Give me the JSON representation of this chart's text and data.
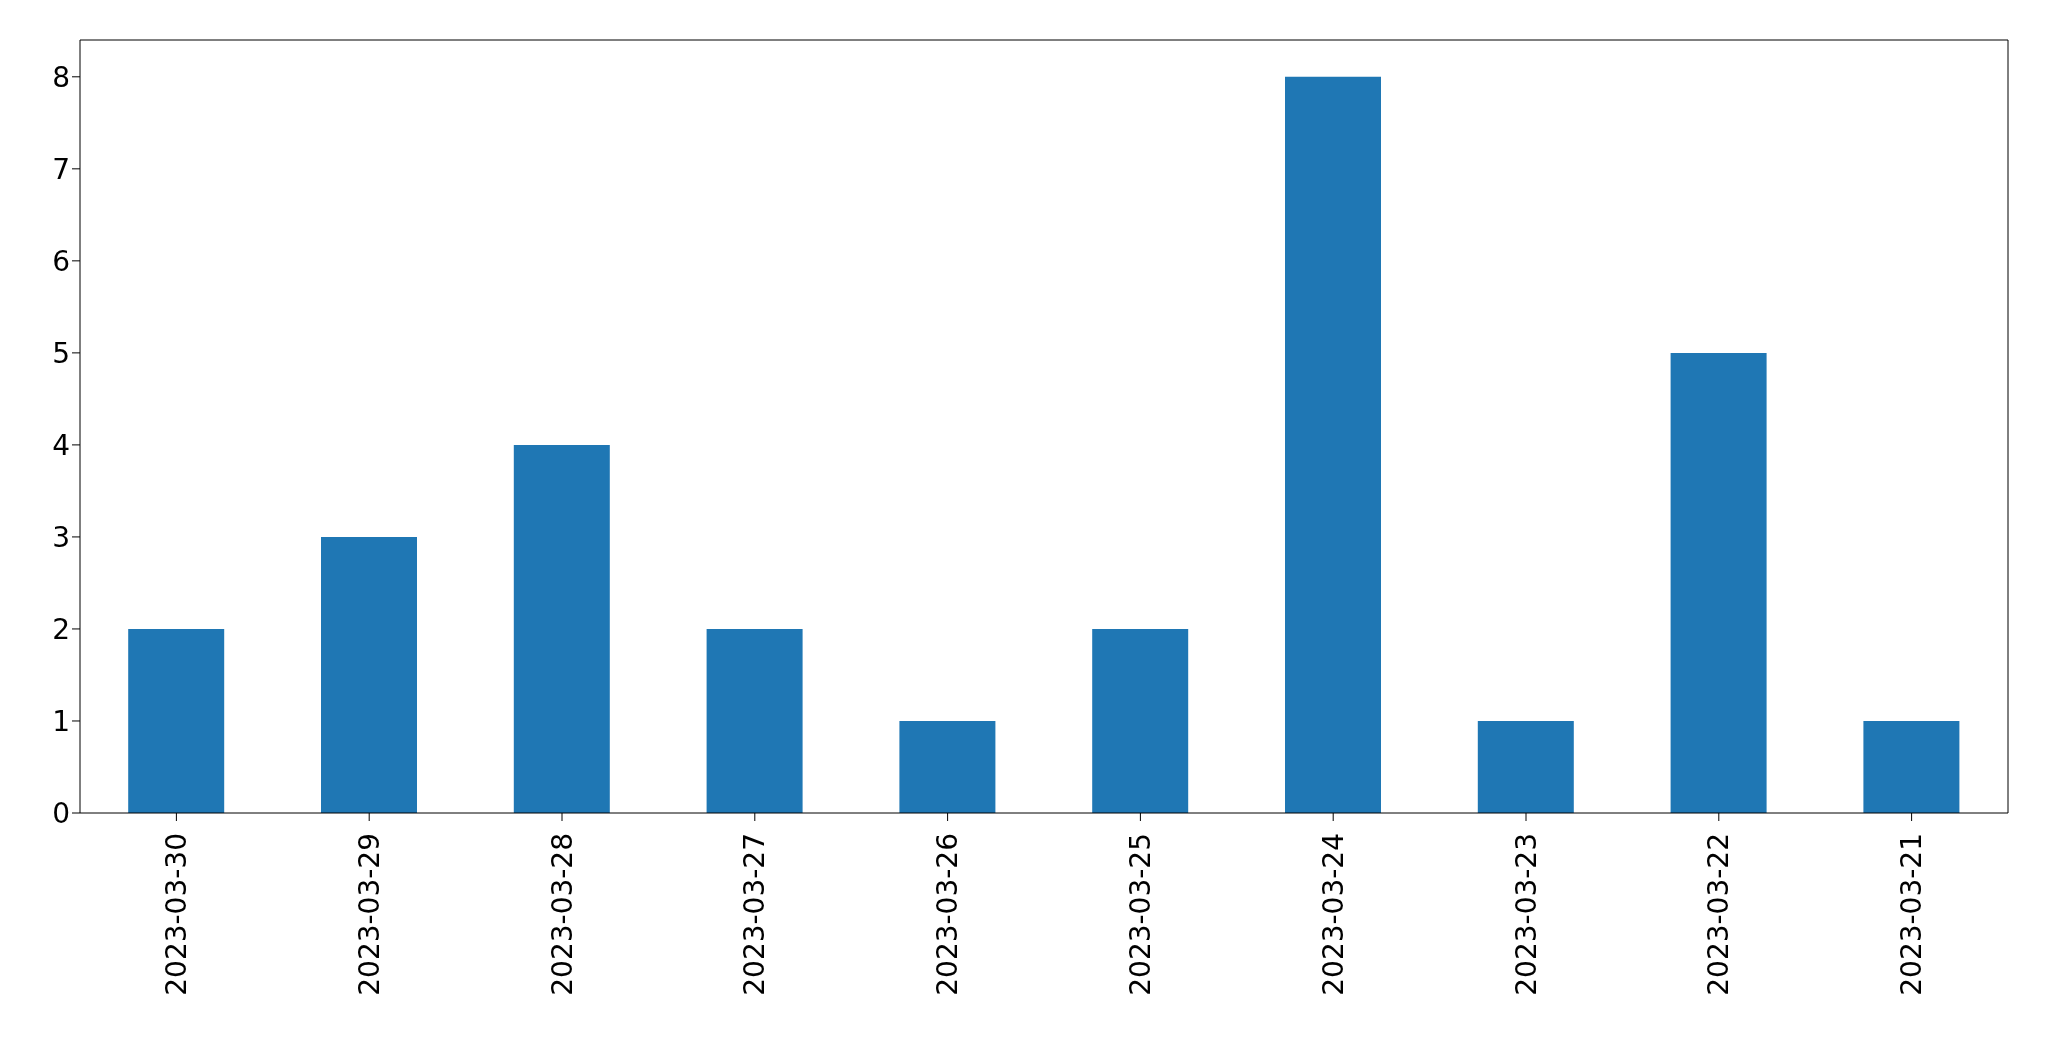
{
  "chart_data": {
    "type": "bar",
    "categories": [
      "2023-03-30",
      "2023-03-29",
      "2023-03-28",
      "2023-03-27",
      "2023-03-26",
      "2023-03-25",
      "2023-03-24",
      "2023-03-23",
      "2023-03-22",
      "2023-03-21"
    ],
    "values": [
      2,
      3,
      4,
      2,
      1,
      2,
      8,
      1,
      5,
      1
    ],
    "color": "#1f77b4",
    "ylim": [
      0,
      8.4
    ],
    "yticks": [
      0,
      1,
      2,
      3,
      4,
      5,
      6,
      7,
      8
    ],
    "grid": false,
    "legend": false
  }
}
